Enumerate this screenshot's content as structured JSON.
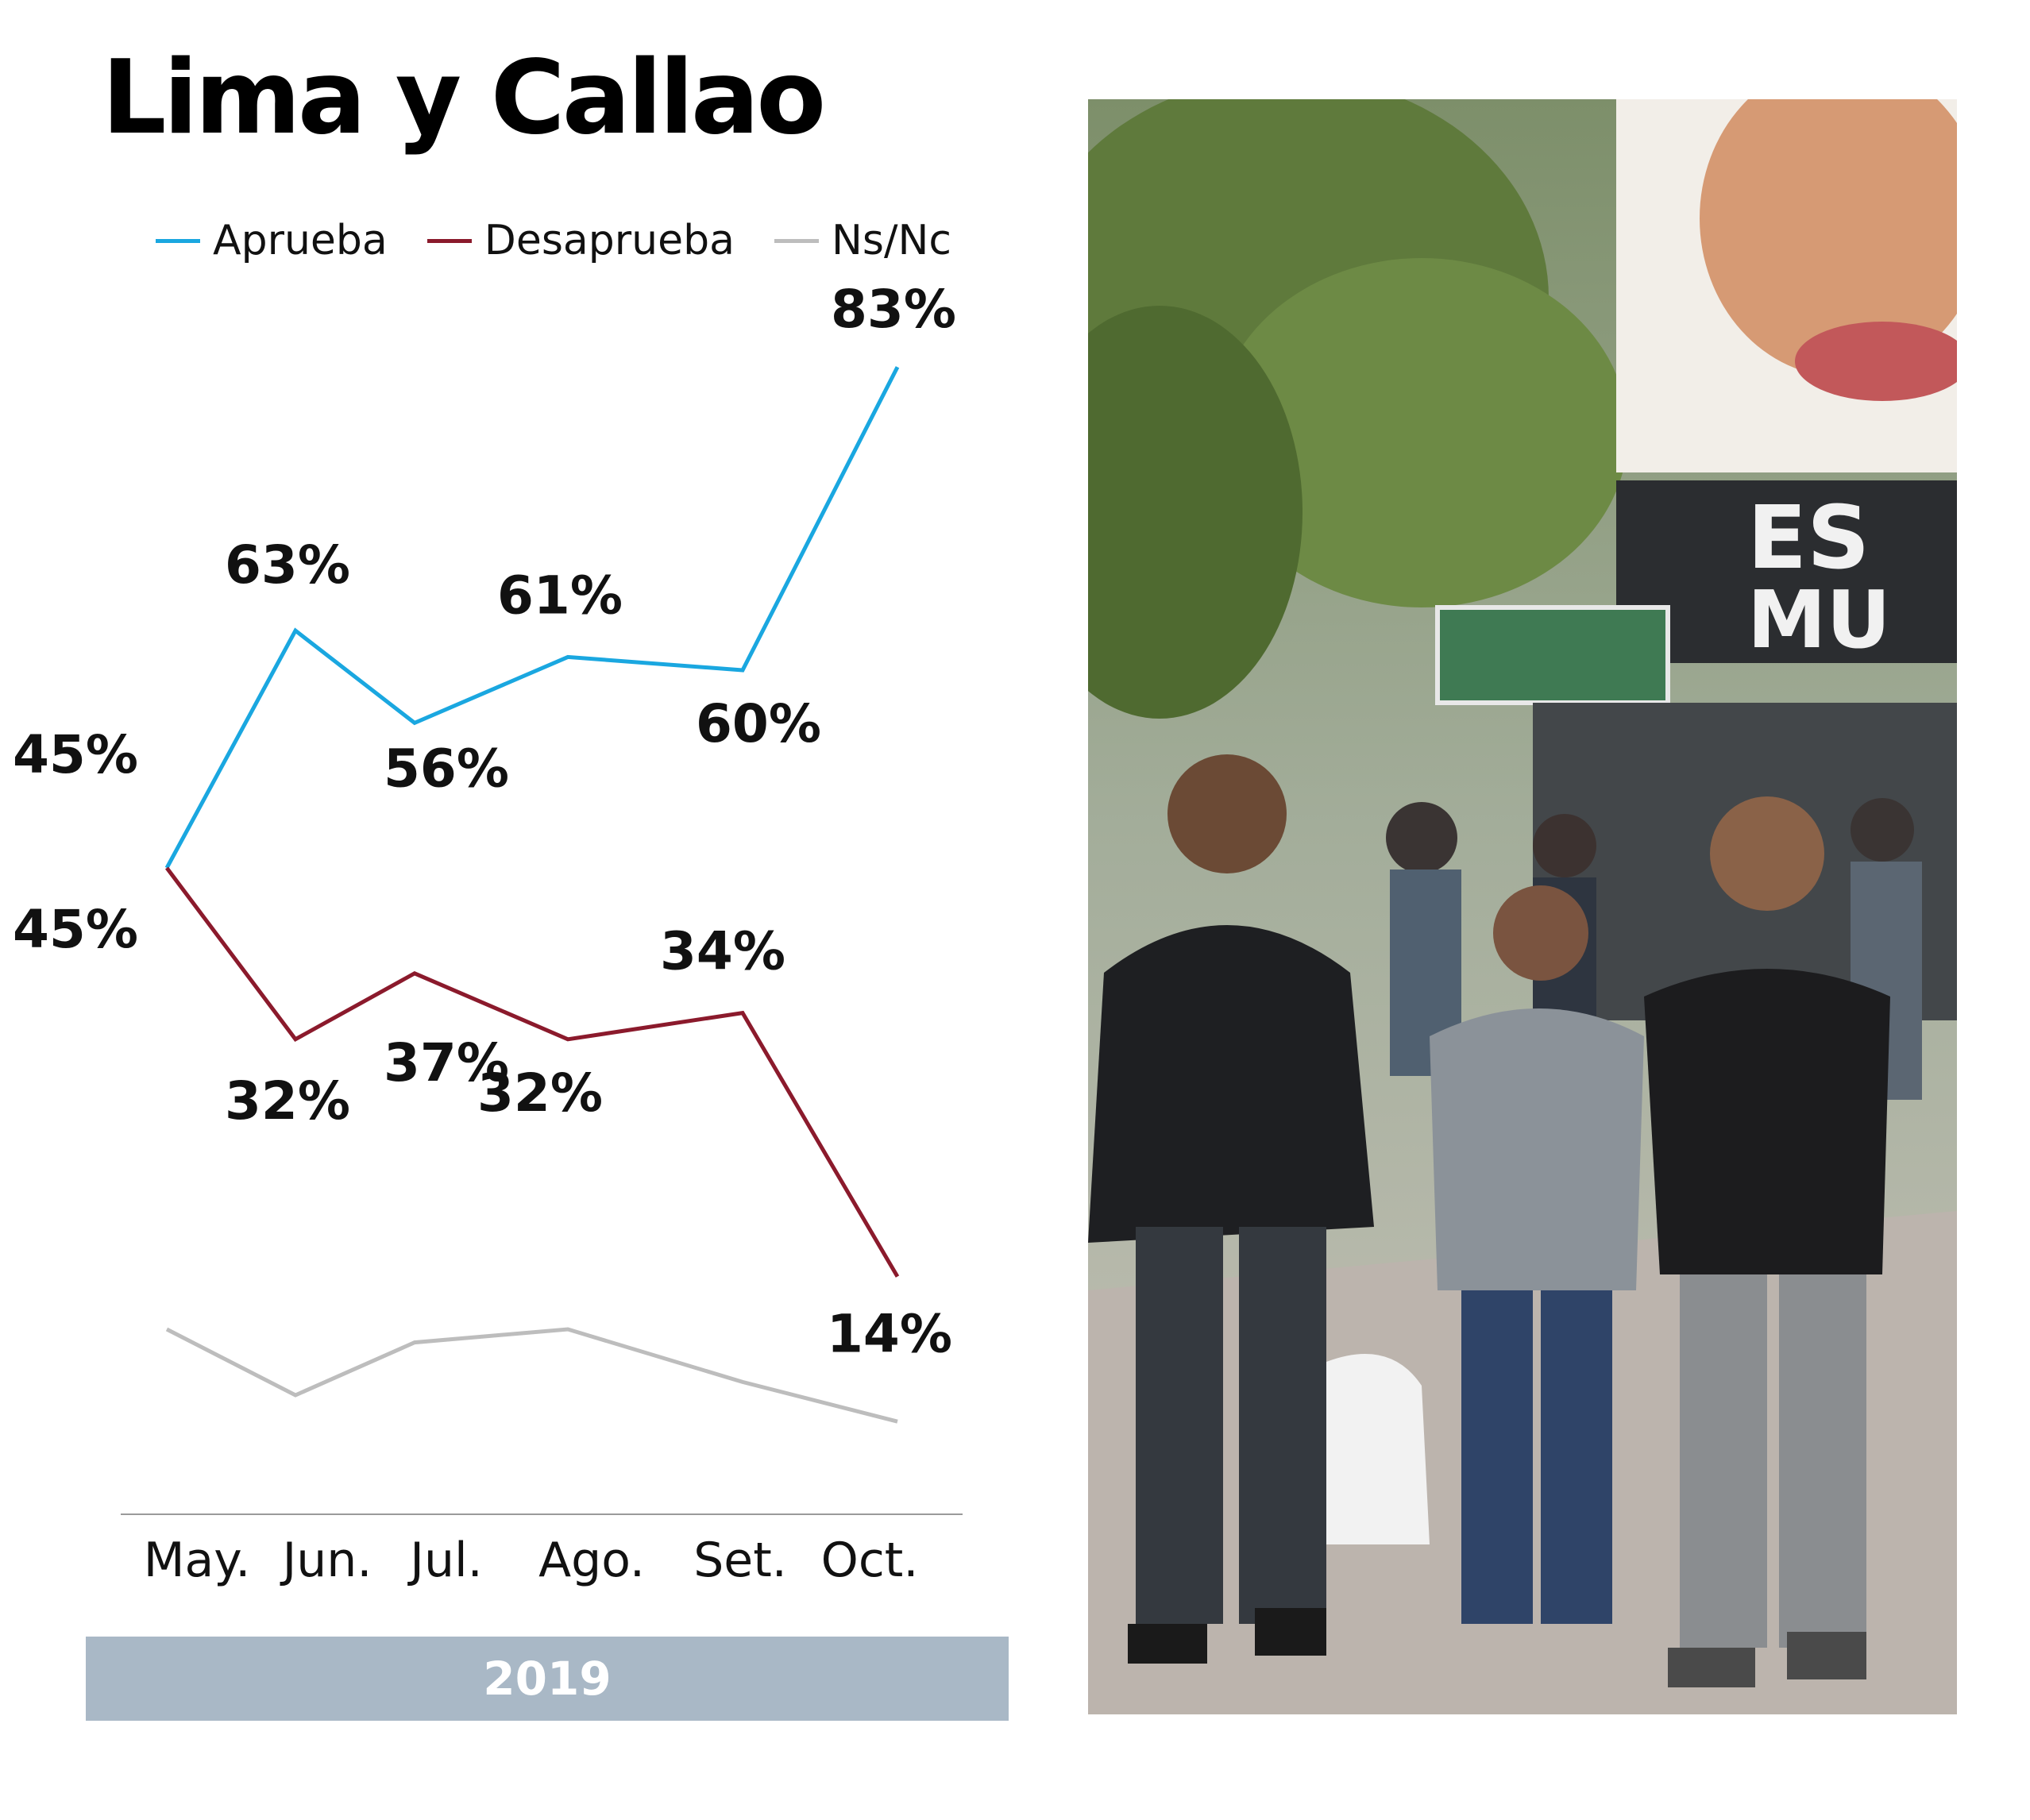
{
  "title": "Lima y Callao",
  "legend": [
    {
      "label": "Aprueba",
      "color": "#1aa7e0"
    },
    {
      "label": "Desaprueba",
      "color": "#8b1a2c"
    },
    {
      "label": "Ns/Nc",
      "color": "#bdbdbd"
    }
  ],
  "year_label": "2019",
  "photo": {
    "description_icon": "street-photo-icon"
  },
  "chart_data": {
    "type": "line",
    "title": "Lima y Callao",
    "categories": [
      "May.",
      "Jun.",
      "Jul.",
      "Ago.",
      "Set.",
      "Oct."
    ],
    "series": [
      {
        "name": "Aprueba",
        "color": "#1aa7e0",
        "values": [
          45,
          63,
          56,
          61,
          60,
          83
        ],
        "labels": [
          "45%",
          "63%",
          "56%",
          "61%",
          "60%",
          "83%"
        ]
      },
      {
        "name": "Desaprueba",
        "color": "#8b1a2c",
        "values": [
          45,
          32,
          37,
          32,
          34,
          14
        ],
        "labels": [
          "45%",
          "32%",
          "37%",
          "32%",
          "34%",
          "14%"
        ]
      },
      {
        "name": "Ns/Nc",
        "color": "#bdbdbd",
        "values": [
          10,
          5,
          9,
          10,
          6,
          3
        ],
        "labels": []
      }
    ],
    "xlabel": "",
    "ylabel": "",
    "ylim": [
      0,
      90
    ],
    "grid": false,
    "legend_position": "top"
  }
}
